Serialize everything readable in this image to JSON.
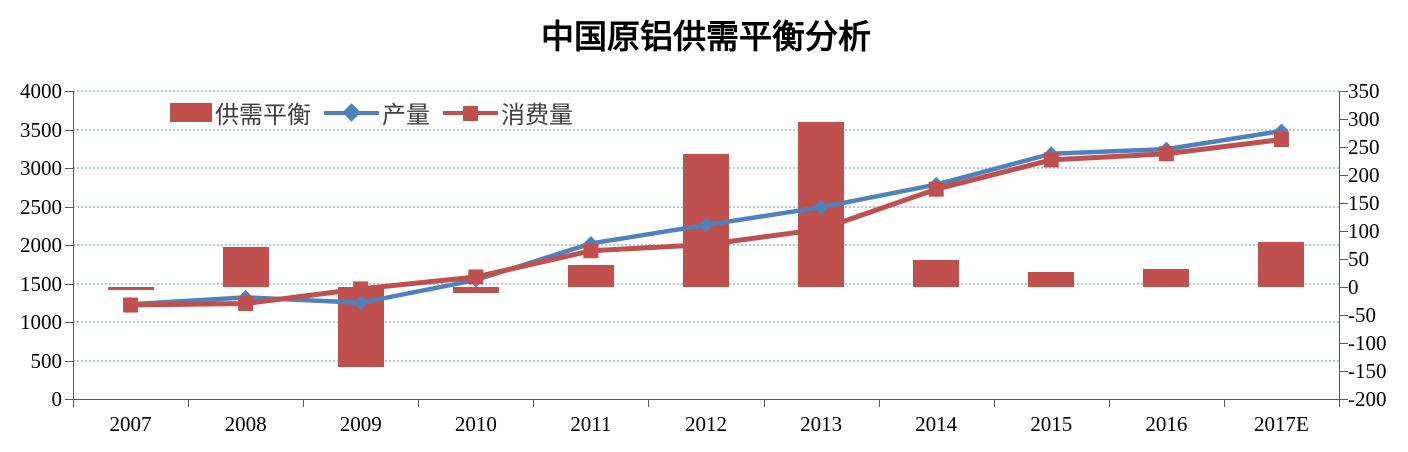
{
  "title": "中国原铝供需平衡分析",
  "legend": {
    "items": [
      {
        "label": "供需平衡",
        "swatch": "bar"
      },
      {
        "label": "产量",
        "swatch": "line-diamond"
      },
      {
        "label": "消费量",
        "swatch": "line-square"
      }
    ]
  },
  "colors": {
    "bar": "#C0504D",
    "production_line": "#4F81BD",
    "consumption_line": "#C0504D",
    "gridline": "#B4C7DE",
    "axis": "#595959",
    "text": "#000000",
    "legend_text": "#404040"
  },
  "chart_data": {
    "type": "combo (bar + line)",
    "title": "中国原铝供需平衡分析",
    "categories": [
      "2007",
      "2008",
      "2009",
      "2010",
      "2011",
      "2012",
      "2013",
      "2014",
      "2015",
      "2016",
      "2017E"
    ],
    "series": [
      {
        "name": "供需平衡",
        "type": "bar",
        "axis": "right",
        "color": "#C0504D",
        "values": [
          -5,
          72,
          -143,
          -10,
          39,
          237,
          295,
          48,
          27,
          33,
          80
        ]
      },
      {
        "name": "产量",
        "type": "line",
        "marker": "diamond",
        "axis": "left",
        "color": "#4F81BD",
        "values": [
          1230,
          1320,
          1250,
          1545,
          2020,
          2260,
          2490,
          2785,
          3185,
          3245,
          3480
        ]
      },
      {
        "name": "消费量",
        "type": "line",
        "marker": "square",
        "axis": "left",
        "color": "#C0504D",
        "values": [
          1220,
          1240,
          1430,
          1585,
          1925,
          2005,
          2205,
          2725,
          3105,
          3185,
          3370
        ]
      }
    ],
    "left_axis": {
      "min": 0,
      "max": 4000,
      "step": 500,
      "tick_labels": [
        "4000",
        "3500",
        "3000",
        "2500",
        "2000",
        "1500",
        "1000",
        "500",
        "0"
      ]
    },
    "right_axis": {
      "min": -200,
      "max": 350,
      "step": 50,
      "tick_labels": [
        "350",
        "300",
        "250",
        "200",
        "150",
        "100",
        "50",
        "0",
        "-50",
        "-100",
        "-150",
        "-200"
      ]
    },
    "grid": "horizontal dotted at left-axis ticks",
    "legend_position": "inside plot, top-left"
  }
}
